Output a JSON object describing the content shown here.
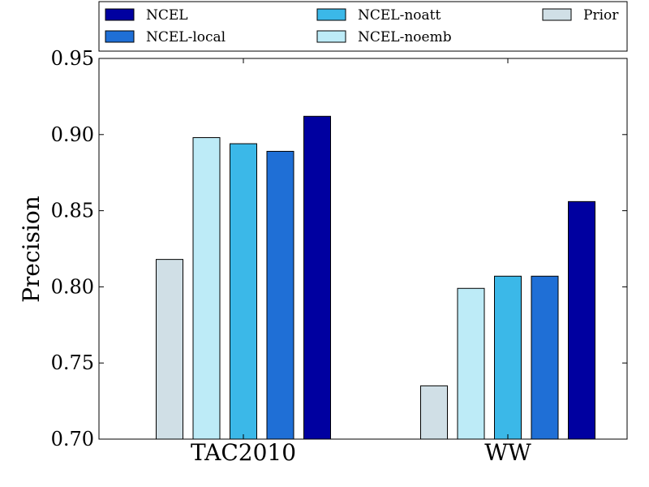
{
  "chart_data": {
    "type": "bar",
    "title": "",
    "xlabel": "",
    "ylabel": "Precision",
    "ylim": [
      0.7,
      0.95
    ],
    "yticks": [
      "0.70",
      "0.75",
      "0.80",
      "0.85",
      "0.90",
      "0.95"
    ],
    "categories": [
      "TAC2010",
      "WW"
    ],
    "legend_position": "top",
    "series": [
      {
        "name": "Prior",
        "color": "#d0dfe6",
        "values": [
          0.818,
          0.735
        ]
      },
      {
        "name": "NCEL-noemb",
        "color": "#bdebf7",
        "values": [
          0.898,
          0.799
        ]
      },
      {
        "name": "NCEL-noatt",
        "color": "#3bb8e8",
        "values": [
          0.894,
          0.807
        ]
      },
      {
        "name": "NCEL-local",
        "color": "#1f6fd6",
        "values": [
          0.889,
          0.807
        ]
      },
      {
        "name": "NCEL",
        "color": "#0000a0",
        "values": [
          0.912,
          0.856
        ]
      }
    ],
    "legend_order": [
      "NCEL",
      "NCEL-local",
      "NCEL-noatt",
      "NCEL-noemb",
      "Prior"
    ]
  }
}
